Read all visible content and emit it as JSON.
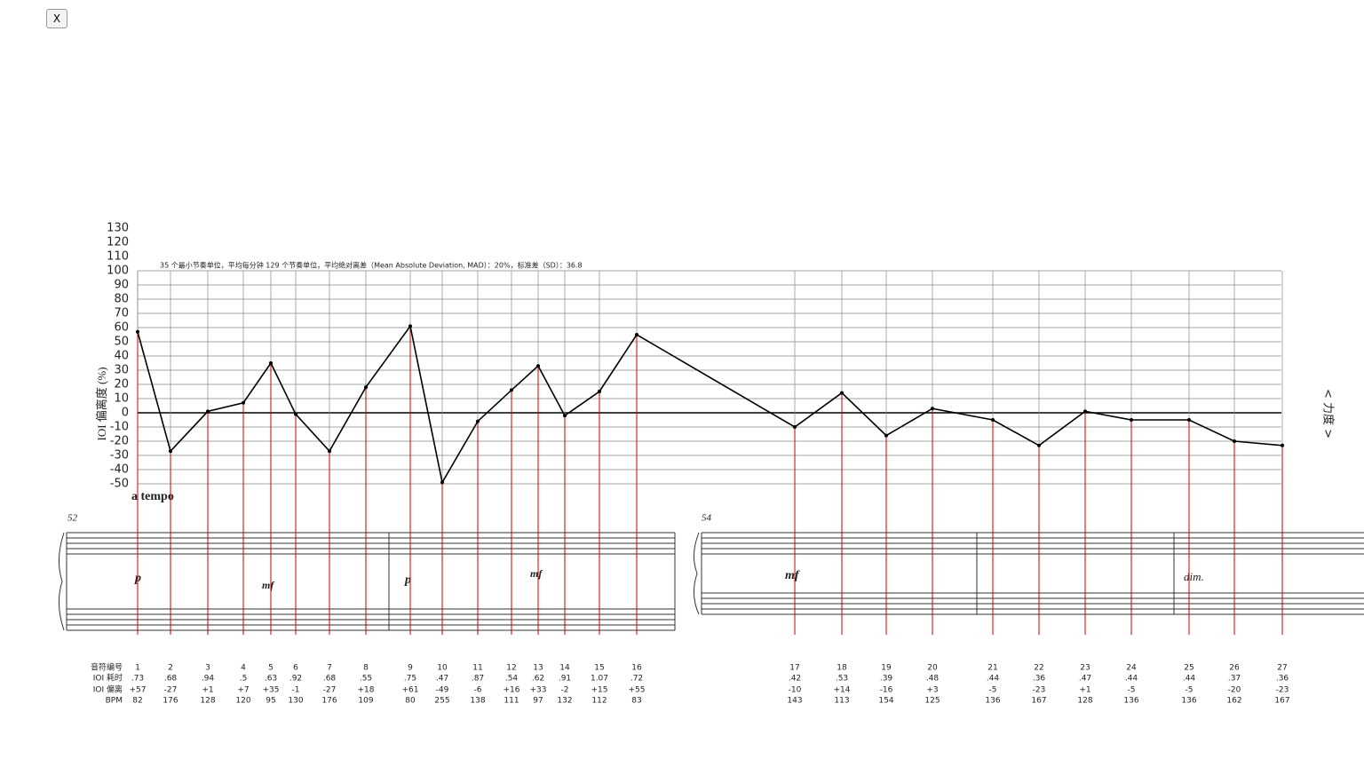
{
  "close_button": "X",
  "score": {
    "tempo": "a tempo",
    "measures": [
      "52",
      "54"
    ],
    "dynamics": [
      "p",
      "mf",
      "p",
      "mf",
      "mf",
      "dim."
    ]
  },
  "chart_data": {
    "type": "line",
    "title": "35 个最小节奏单位，平均每分钟 129 个节奏单位，平均绝对离差（Mean Absolute Deviation, MAD）：20%，标准差（SD）：36.8",
    "y_label": "IOI 偏离度 (%)",
    "y2_label": "< 力度 >",
    "categories": [
      "1",
      "2",
      "3",
      "4",
      "5",
      "6",
      "7",
      "8",
      "9",
      "10",
      "11",
      "12",
      "13",
      "14",
      "15",
      "16",
      "17",
      "18",
      "19",
      "20",
      "21",
      "22",
      "23",
      "24",
      "25",
      "26",
      "27"
    ],
    "series": [
      {
        "name": "IOI 偏离",
        "color": "#000000",
        "values": [
          57,
          -27,
          1,
          7,
          35,
          -1,
          -27,
          18,
          61,
          -49,
          -6,
          16,
          33,
          -2,
          15,
          55,
          -10,
          14,
          -16,
          3,
          -5,
          -23,
          1,
          -5,
          -5,
          -20,
          -23
        ],
        "value_labels": [
          "+57",
          "-27",
          "+1",
          "+7",
          "+35",
          "-1",
          "-27",
          "+18",
          "+61",
          "-49",
          "-6",
          "+16",
          "+33",
          "-2",
          "+15",
          "+55",
          "-10",
          "+14",
          "-16",
          "+3",
          "-5",
          "-23",
          "+1",
          "-5",
          "-5",
          "-20",
          "-23"
        ]
      }
    ],
    "table": {
      "row_headers": [
        "音符编号",
        "IOI 耗时",
        "IOI 偏离",
        "BPM"
      ],
      "ioi_times": [
        ".73",
        ".68",
        ".94",
        ".5",
        ".63",
        ".92",
        ".68",
        ".55",
        ".75",
        ".47",
        ".87",
        ".54",
        ".62",
        ".91",
        "1.07",
        ".72",
        ".42",
        ".53",
        ".39",
        ".48",
        ".44",
        ".36",
        ".47",
        ".44",
        ".44",
        ".37",
        ".36"
      ],
      "bpm": [
        82,
        176,
        128,
        120,
        95,
        130,
        176,
        109,
        80,
        255,
        138,
        111,
        97,
        132,
        112,
        83,
        143,
        113,
        154,
        125,
        136,
        167,
        128,
        136,
        136,
        162,
        167
      ]
    },
    "ylim": [
      -50,
      130
    ],
    "yticks": [
      -50,
      -40,
      -30,
      -20,
      -10,
      0,
      10,
      20,
      30,
      40,
      50,
      60,
      70,
      80,
      90,
      100,
      110,
      120,
      130
    ],
    "grid": true,
    "marker_color": "#cc0000"
  }
}
